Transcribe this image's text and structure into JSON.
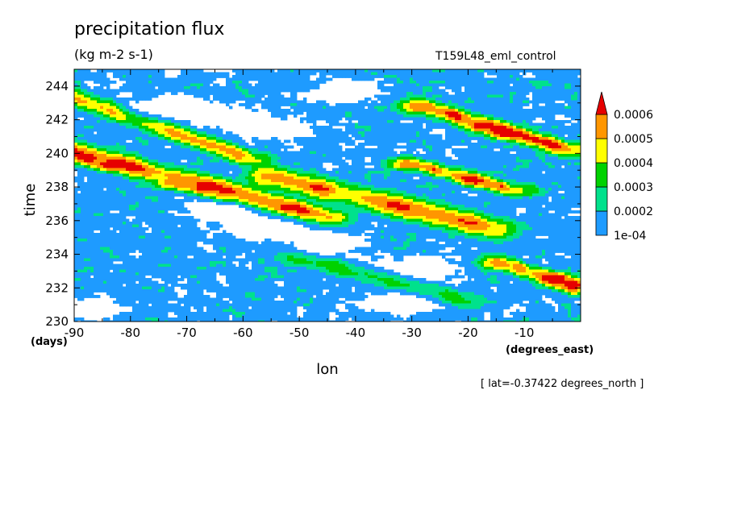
{
  "chart_data": {
    "type": "heatmap",
    "title": "precipitation flux",
    "units": "(kg m-2 s-1)",
    "experiment": "T159L48_eml_control",
    "xlabel": "lon",
    "x_units": "(degrees_east)",
    "ylabel": "time",
    "y_units": "(days)",
    "section_note": "[ lat=-0.37422 degrees_north ]",
    "xlim": [
      -90,
      0
    ],
    "ylim": [
      230,
      245
    ],
    "x_ticks": [
      -90,
      -80,
      -70,
      -60,
      -50,
      -40,
      -30,
      -20,
      -10
    ],
    "y_ticks": [
      230,
      232,
      234,
      236,
      238,
      240,
      242,
      244
    ],
    "x_tick_labels": [
      "-90",
      "-80",
      "-70",
      "-60",
      "-50",
      "-40",
      "-30",
      "-20",
      "-10"
    ],
    "y_tick_labels": [
      "230",
      "232",
      "234",
      "236",
      "238",
      "240",
      "242",
      "244"
    ],
    "levels": [
      0.0001,
      0.0002,
      0.0003,
      0.0004,
      0.0005,
      0.0006
    ],
    "colorbar_labels": [
      "1e-04",
      "0.0002",
      "0.0003",
      "0.0004",
      "0.0005",
      "0.0006"
    ],
    "colors": [
      "#ffffff",
      "#1e9bff",
      "#00e18c",
      "#00d200",
      "#ffff00",
      "#ff9600",
      "#e60000"
    ],
    "features": [
      {
        "kind": "band",
        "lon_start": -90,
        "time_start": 243.3,
        "lon_end": -58,
        "time_end": 239.6,
        "peak": 0.00045,
        "width": 0.8
      },
      {
        "kind": "band",
        "lon_start": -90,
        "time_start": 240.1,
        "lon_end": -45,
        "time_end": 236.2,
        "peak": 0.00055,
        "width": 0.9
      },
      {
        "kind": "band",
        "lon_start": -72,
        "time_start": 238.2,
        "lon_end": -50,
        "time_end": 236.5,
        "peak": 0.0004,
        "width": 0.6
      },
      {
        "kind": "band",
        "lon_start": -55,
        "time_start": 238.6,
        "lon_end": -15,
        "time_end": 235.5,
        "peak": 0.0005,
        "width": 1.0
      },
      {
        "kind": "band",
        "lon_start": -30,
        "time_start": 239.4,
        "lon_end": -12,
        "time_end": 237.8,
        "peak": 0.0005,
        "width": 0.6
      },
      {
        "kind": "band",
        "lon_start": -28,
        "time_start": 242.8,
        "lon_end": -2,
        "time_end": 240.2,
        "peak": 0.00055,
        "width": 0.7
      },
      {
        "kind": "band",
        "lon_start": -14,
        "time_start": 233.5,
        "lon_end": 0,
        "time_end": 231.9,
        "peak": 0.0005,
        "width": 0.7
      },
      {
        "kind": "band",
        "lon_start": -50,
        "time_start": 233.8,
        "lon_end": -20,
        "time_end": 231.2,
        "peak": 0.0003,
        "width": 0.8
      },
      {
        "kind": "spot",
        "lon": -88,
        "time": 239.7,
        "value": 0.0006
      },
      {
        "kind": "spot",
        "lon": -84,
        "time": 239.3,
        "value": 0.0006
      },
      {
        "kind": "spot",
        "lon": -63,
        "time": 237.4,
        "value": 0.0006
      },
      {
        "kind": "spot",
        "lon": -19,
        "time": 238.4,
        "value": 0.0006
      },
      {
        "kind": "spot",
        "lon": -18,
        "time": 241.6,
        "value": 0.0006
      },
      {
        "kind": "spot",
        "lon": -14,
        "time": 241.2,
        "value": 0.0006
      },
      {
        "kind": "spot",
        "lon": -4,
        "time": 232.6,
        "value": 0.0006
      },
      {
        "kind": "spot",
        "lon": -1,
        "time": 232.2,
        "value": 0.0006
      },
      {
        "kind": "dry",
        "lon": -74,
        "time": 242.8,
        "value": 0.0
      },
      {
        "kind": "dry",
        "lon": -64,
        "time": 242.2,
        "value": 0.0
      },
      {
        "kind": "dry",
        "lon": -55,
        "time": 241.5,
        "value": 0.0
      },
      {
        "kind": "dry",
        "lon": -42,
        "time": 243.8,
        "value": 0.0
      },
      {
        "kind": "dry",
        "lon": -64,
        "time": 236.6,
        "value": 0.0
      },
      {
        "kind": "dry",
        "lon": -55,
        "time": 235.5,
        "value": 0.0
      },
      {
        "kind": "dry",
        "lon": -45,
        "time": 234.6,
        "value": 0.0
      },
      {
        "kind": "dry",
        "lon": -28,
        "time": 233.2,
        "value": 0.0
      },
      {
        "kind": "dry",
        "lon": -87,
        "time": 230.7,
        "value": 0.0
      },
      {
        "kind": "dry",
        "lon": -32,
        "time": 231.1,
        "value": 0.0
      }
    ]
  }
}
